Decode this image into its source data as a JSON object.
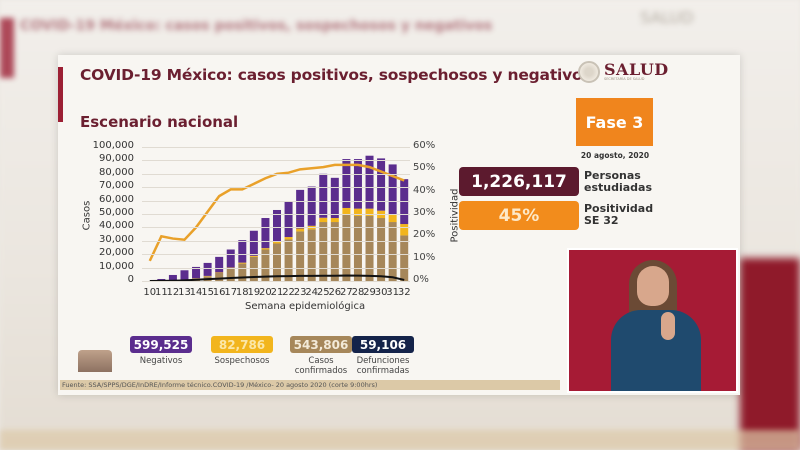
{
  "slide": {
    "title": "COVID-19 México: casos positivos, sospechosos y negativos",
    "subtitle": "Escenario nacional",
    "brand": "SALUD",
    "brand_sub": "SECRETARÍA DE SALUD",
    "phase": "Fase 3",
    "date": "20 agosto, 2020",
    "source": "Fuente: SSA/SPPS/DGE/InDRE/Informe técnico.COVID-19 /México- 20 agosto 2020 (corte 9:00hrs)"
  },
  "stats": {
    "personas": {
      "value": "1,226,117",
      "label_line1": "Personas",
      "label_line2": "estudiadas",
      "color": "#5c1a2e"
    },
    "positividad": {
      "value": "45%",
      "label_line1": "Positividad",
      "label_line2": "SE 32",
      "color": "#f28c1c"
    }
  },
  "legend": [
    {
      "value": "599,525",
      "label": "Negativos",
      "color": "#5b2d8e"
    },
    {
      "value": "82,786",
      "label": "Sospechosos",
      "color": "#f2b51d"
    },
    {
      "value": "543,806",
      "label": "Casos confirmados",
      "color": "#a6875a"
    },
    {
      "value": "59,106",
      "label": "Defunciones confirmadas",
      "color": "#14234a"
    }
  ],
  "chart_data": {
    "type": "bar",
    "title": "Escenario nacional",
    "xlabel": "Semana epidemiológica",
    "ylabel": "Casos",
    "y2label": "Positividad",
    "ylim": [
      0,
      100000
    ],
    "y2lim": [
      0,
      60
    ],
    "yticks": [
      "0",
      "10,000",
      "20,000",
      "30,000",
      "40,000",
      "50,000",
      "60,000",
      "70,000",
      "80,000",
      "90,000",
      "100,000"
    ],
    "y2ticks": [
      "0%",
      "10%",
      "20%",
      "30%",
      "40%",
      "50%",
      "60%"
    ],
    "grid": true,
    "stacked": true,
    "categories": [
      "10",
      "11",
      "12",
      "13",
      "14",
      "15",
      "16",
      "17",
      "18",
      "19",
      "20",
      "21",
      "22",
      "23",
      "24",
      "25",
      "26",
      "27",
      "28",
      "29",
      "30",
      "31",
      "32"
    ],
    "series": [
      {
        "name": "Casos confirmados",
        "type": "bar",
        "color": "#a6875a",
        "values": [
          0,
          200,
          500,
          900,
          1900,
          3500,
          6000,
          9500,
          13000,
          18000,
          23500,
          28000,
          31000,
          37000,
          38500,
          44000,
          44000,
          49500,
          48500,
          48500,
          47000,
          44000,
          34000
        ]
      },
      {
        "name": "Sospechosos",
        "type": "bar",
        "color": "#f2b51d",
        "values": [
          0,
          50,
          100,
          150,
          200,
          300,
          400,
          500,
          700,
          800,
          1000,
          1500,
          1800,
          2200,
          2700,
          3200,
          3000,
          5000,
          5500,
          5500,
          5500,
          5500,
          8500
        ]
      },
      {
        "name": "Negativos",
        "type": "bar",
        "color": "#5b2d8e",
        "values": [
          0,
          1250,
          3900,
          6950,
          8400,
          9700,
          11600,
          13500,
          16800,
          18700,
          22500,
          23500,
          26200,
          28800,
          29300,
          32800,
          30000,
          36500,
          37000,
          39500,
          39000,
          37500,
          33500
        ]
      },
      {
        "name": "Defunciones confirmadas",
        "type": "line",
        "color": "#111111",
        "values": [
          0,
          50,
          200,
          500,
          900,
          1400,
          1800,
          2200,
          2600,
          3000,
          3300,
          3500,
          3600,
          3800,
          3800,
          3900,
          3900,
          4100,
          4000,
          3800,
          3500,
          2800,
          800
        ]
      },
      {
        "name": "Positividad (%)",
        "type": "line",
        "axis": "y2",
        "color": "#e9a12a",
        "values": [
          9,
          20,
          19,
          18.5,
          24,
          31,
          38,
          41,
          41,
          43.5,
          46,
          48,
          48.5,
          50,
          50.5,
          51,
          52,
          52,
          52,
          51,
          49,
          47,
          45
        ]
      }
    ]
  }
}
